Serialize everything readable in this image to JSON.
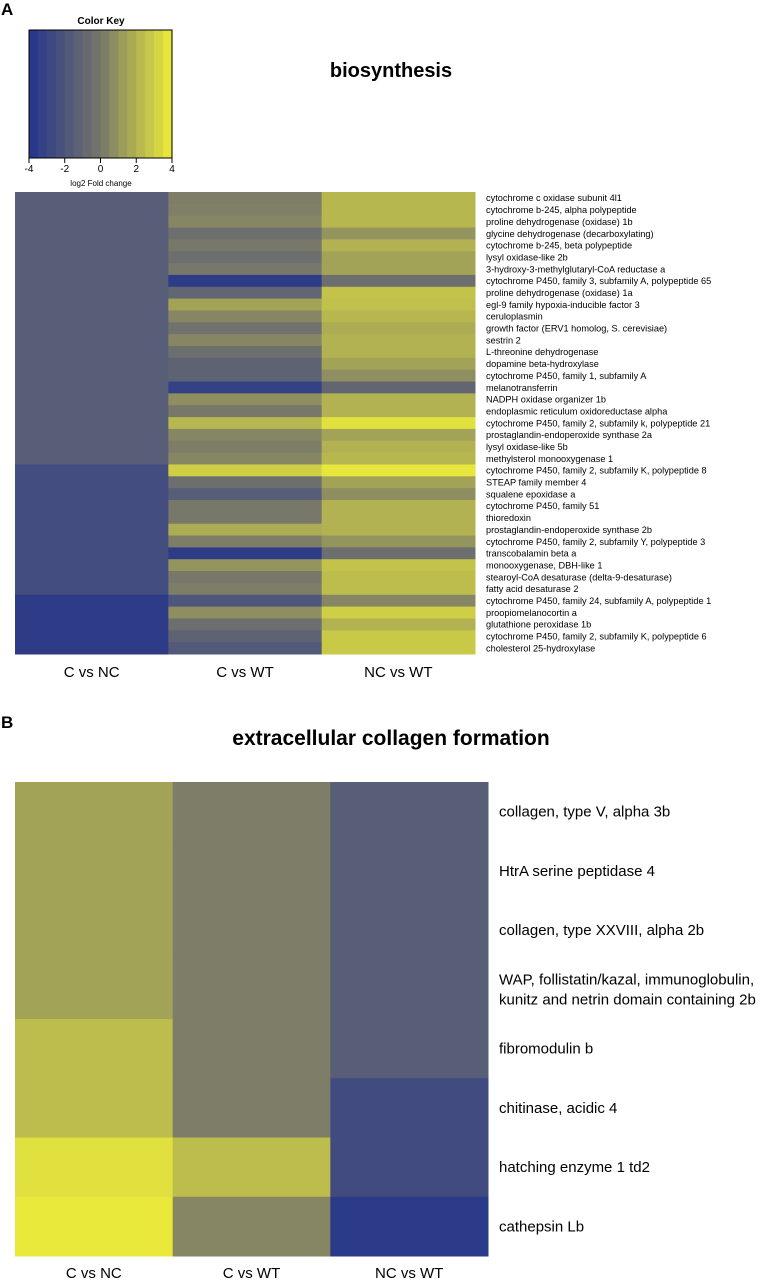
{
  "colors": {
    "min": "#24348c",
    "mid": "#77776a",
    "max": "#ecec3a",
    "text": "#000000"
  },
  "chart_data": [
    {
      "panel": "A",
      "type": "heatmap",
      "title": "biosynthesis",
      "columns": [
        "C vs NC",
        "C vs WT",
        "NC vs WT"
      ],
      "rows": [
        {
          "label": "cytochrome c oxidase subunit 4l1",
          "values": [
            -1.5,
            0.2,
            2.2
          ]
        },
        {
          "label": "cytochrome b-245, alpha polypeptide",
          "values": [
            -1.5,
            0.3,
            2.2
          ]
        },
        {
          "label": "proline dehydrogenase (oxidase) 1b",
          "values": [
            -1.5,
            0.5,
            2.2
          ]
        },
        {
          "label": "glycine dehydrogenase (decarboxylating)",
          "values": [
            -1.5,
            -0.5,
            1.0
          ]
        },
        {
          "label": "cytochrome b-245, beta polypeptide",
          "values": [
            -1.5,
            0.0,
            2.0
          ]
        },
        {
          "label": "lysyl oxidase-like 2b",
          "values": [
            -1.5,
            -0.5,
            1.5
          ]
        },
        {
          "label": "3-hydroxy-3-methylglutaryl-CoA reductase a",
          "values": [
            -1.5,
            0.0,
            1.5
          ]
        },
        {
          "label": "cytochrome P450, family 3, subfamily A, polypeptide 65",
          "values": [
            -1.5,
            -3.5,
            -0.5
          ]
        },
        {
          "label": "proline dehydrogenase (oxidase) 1a",
          "values": [
            -1.5,
            -1.0,
            2.6
          ]
        },
        {
          "label": "egl-9 family hypoxia-inducible factor 3",
          "values": [
            -1.5,
            1.5,
            2.5
          ]
        },
        {
          "label": "ceruloplasmin",
          "values": [
            -1.5,
            0.5,
            2.2
          ]
        },
        {
          "label": "growth factor (ERV1 homolog, S. cerevisiae)",
          "values": [
            -1.5,
            -0.3,
            1.8
          ]
        },
        {
          "label": "sestrin 2",
          "values": [
            -1.5,
            0.5,
            2.0
          ]
        },
        {
          "label": "L-threonine dehydrogenase",
          "values": [
            -1.5,
            -0.5,
            2.0
          ]
        },
        {
          "label": "dopamine beta-hydroxylase",
          "values": [
            -1.5,
            -1.2,
            1.5
          ]
        },
        {
          "label": "cytochrome P450, family 1, subfamily A",
          "values": [
            -1.5,
            -1.2,
            0.8
          ]
        },
        {
          "label": "melanotransferrin",
          "values": [
            -1.5,
            -3.2,
            -1.0
          ]
        },
        {
          "label": "NADPH oxidase organizer 1b",
          "values": [
            -1.5,
            0.8,
            2.0
          ]
        },
        {
          "label": "endoplasmic reticulum oxidoreductase alpha",
          "values": [
            -1.5,
            0.0,
            2.0
          ]
        },
        {
          "label": "cytochrome P450, family 2, subfamily k, polypeptide 21",
          "values": [
            -1.5,
            2.2,
            3.6
          ]
        },
        {
          "label": "prostaglandin-endoperoxide synthase 2a",
          "values": [
            -1.5,
            0.5,
            1.5
          ]
        },
        {
          "label": "lysyl oxidase-like 5b",
          "values": [
            -1.5,
            0.2,
            2.0
          ]
        },
        {
          "label": "methylsterol monooxygenase 1",
          "values": [
            -1.5,
            0.5,
            2.2
          ]
        },
        {
          "label": "cytochrome P450, family 2, subfamily K, polypeptide 8",
          "values": [
            -2.5,
            3.0,
            3.8
          ]
        },
        {
          "label": "STEAP family member 4",
          "values": [
            -2.5,
            -0.5,
            1.5
          ]
        },
        {
          "label": "squalene epoxidase a",
          "values": [
            -2.5,
            -1.5,
            0.8
          ]
        },
        {
          "label": "cytochrome P450, family 51",
          "values": [
            -2.5,
            0.0,
            2.0
          ]
        },
        {
          "label": "thioredoxin",
          "values": [
            -2.5,
            0.0,
            2.0
          ]
        },
        {
          "label": "prostaglandin-endoperoxide synthase 2b",
          "values": [
            -2.5,
            1.8,
            2.0
          ]
        },
        {
          "label": "cytochrome P450, family 2, subfamily Y, polypeptide 3",
          "values": [
            -2.5,
            0.2,
            1.0
          ]
        },
        {
          "label": "transcobalamin beta a",
          "values": [
            -2.5,
            -3.5,
            -0.5
          ]
        },
        {
          "label": "monooxygenase, DBH-like 1",
          "values": [
            -2.5,
            1.0,
            2.6
          ]
        },
        {
          "label": "stearoyl-CoA desaturase (delta-9-desaturase)",
          "values": [
            -2.5,
            0.0,
            2.4
          ]
        },
        {
          "label": "fatty acid desaturase 2",
          "values": [
            -2.5,
            0.2,
            2.4
          ]
        },
        {
          "label": "cytochrome P450, family 24, subfamily A, polypeptide 1",
          "values": [
            -3.5,
            -2.0,
            0.5
          ]
        },
        {
          "label": "proopiomelanocortin a",
          "values": [
            -3.5,
            0.8,
            3.0
          ]
        },
        {
          "label": "glutathione peroxidase 1b",
          "values": [
            -3.5,
            -0.5,
            2.0
          ]
        },
        {
          "label": "cytochrome P450, family 2, subfamily K, polypeptide 6",
          "values": [
            -3.5,
            -1.2,
            2.8
          ]
        },
        {
          "label": "cholesterol 25-hydroxylase",
          "values": [
            -3.5,
            -1.8,
            2.8
          ]
        }
      ],
      "color_key": {
        "title": "Color Key",
        "xlabel": "log2 Fold change",
        "ticks": [
          "-4",
          "-2",
          "0",
          "2",
          "4"
        ],
        "range": [
          -4,
          4
        ]
      }
    },
    {
      "panel": "B",
      "type": "heatmap",
      "title": "extracellular collagen formation",
      "columns": [
        "C vs NC",
        "C vs WT",
        "NC vs WT"
      ],
      "rows": [
        {
          "label": "collagen, type V, alpha 3b",
          "values": [
            1.5,
            0.2,
            -1.5
          ]
        },
        {
          "label": "HtrA serine peptidase 4",
          "values": [
            1.5,
            0.2,
            -1.5
          ]
        },
        {
          "label": "collagen, type XXVIII, alpha 2b",
          "values": [
            1.5,
            0.2,
            -1.5
          ]
        },
        {
          "label": "WAP, follistatin/kazal, immunoglobulin, kunitz and netrin domain containing 2b",
          "values": [
            1.5,
            0.2,
            -1.5
          ]
        },
        {
          "label": "fibromodulin b",
          "values": [
            2.4,
            0.2,
            -1.5
          ]
        },
        {
          "label": "chitinase, acidic 4",
          "values": [
            2.4,
            0.2,
            -2.6
          ]
        },
        {
          "label": "hatching enzyme 1 td2",
          "values": [
            3.6,
            2.4,
            -2.6
          ]
        },
        {
          "label": "cathepsin Lb",
          "values": [
            3.9,
            0.5,
            -3.6
          ]
        }
      ]
    }
  ]
}
